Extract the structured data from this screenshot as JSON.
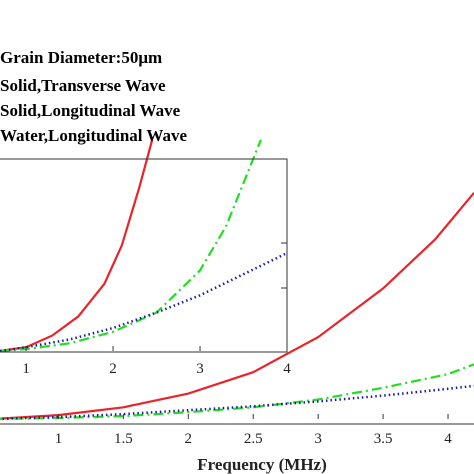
{
  "legend": {
    "title": "Grain Diameter:50μm",
    "entries": [
      "Solid,Transverse Wave",
      "Solid,Longitudinal Wave",
      "Water,Longitudinal Wave"
    ]
  },
  "chart_data": [
    {
      "type": "line",
      "panel": "main",
      "xlabel": "Frequency (MHz)",
      "xlim": [
        0.55,
        4.2
      ],
      "x_ticks": [
        "1",
        "1.5",
        "2",
        "2.5",
        "3",
        "3.5",
        "4"
      ],
      "series": [
        {
          "color": "#e8242a",
          "style": "solid",
          "x": [
            0.5,
            1.0,
            1.5,
            2.0,
            2.5,
            3.0,
            3.5,
            3.9,
            4.2
          ],
          "y": [
            0.0,
            0.02,
            0.06,
            0.13,
            0.24,
            0.42,
            0.67,
            0.92,
            1.16
          ]
        },
        {
          "color": "#22dd22",
          "style": "dashdot",
          "x": [
            0.5,
            1.0,
            1.5,
            2.0,
            2.5,
            3.0,
            3.5,
            4.0,
            4.2
          ],
          "y": [
            0.0,
            0.005,
            0.015,
            0.035,
            0.06,
            0.1,
            0.16,
            0.23,
            0.28
          ]
        },
        {
          "color": "#1a1aaa",
          "style": "dotted",
          "x": [
            0.5,
            1.0,
            1.5,
            2.0,
            2.5,
            3.0,
            3.5,
            4.0,
            4.2
          ],
          "y": [
            0.0,
            0.01,
            0.025,
            0.045,
            0.065,
            0.09,
            0.12,
            0.155,
            0.17
          ]
        }
      ]
    },
    {
      "type": "line",
      "panel": "inset",
      "xlim": [
        0.7,
        4.0
      ],
      "x_ticks": [
        "1",
        "2",
        "3",
        "4"
      ],
      "series": [
        {
          "color": "#e8242a",
          "style": "solid",
          "x": [
            0.7,
            1.0,
            1.3,
            1.6,
            1.9,
            2.1,
            2.3,
            2.45
          ],
          "y": [
            0.0,
            0.02,
            0.08,
            0.18,
            0.35,
            0.55,
            0.85,
            1.1
          ]
        },
        {
          "color": "#22dd22",
          "style": "dashdot",
          "x": [
            0.7,
            1.0,
            1.5,
            2.0,
            2.5,
            3.0,
            3.3,
            3.7
          ],
          "y": [
            0.0,
            0.01,
            0.04,
            0.1,
            0.2,
            0.42,
            0.65,
            1.1
          ]
        },
        {
          "color": "#1a1aaa",
          "style": "dotted",
          "x": [
            0.7,
            1.0,
            1.5,
            2.0,
            2.5,
            3.0,
            3.5,
            4.0
          ],
          "y": [
            0.0,
            0.02,
            0.06,
            0.12,
            0.2,
            0.29,
            0.4,
            0.51
          ]
        }
      ]
    }
  ]
}
